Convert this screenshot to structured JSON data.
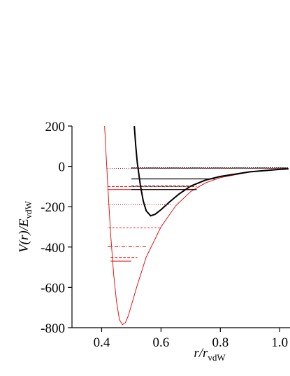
{
  "chart_data": {
    "type": "line",
    "xlabel": [
      "r/r",
      "vdW"
    ],
    "ylabel": [
      "V(r)/E",
      "vdW"
    ],
    "xlim": [
      0.3,
      1.03
    ],
    "ylim": [
      -800,
      200
    ],
    "xticks": [
      0.4,
      0.6,
      0.8,
      {
        "value": 1,
        "label": "1.0"
      }
    ],
    "yticks": [
      200,
      0,
      -200,
      -400,
      -600,
      -800
    ],
    "series": [
      {
        "color": "#e00000",
        "width": 0.9,
        "dash": "none",
        "x": [
          0.41,
          0.415,
          0.42,
          0.43,
          0.44,
          0.45,
          0.46,
          0.47,
          0.48,
          0.49,
          0.5,
          0.52,
          0.55,
          0.6,
          0.65,
          0.7,
          0.75,
          0.8,
          0.9,
          1.0,
          1.03
        ],
        "values": [
          200,
          60,
          -80,
          -330,
          -530,
          -670,
          -760,
          -785,
          -775,
          -740,
          -690,
          -590,
          -450,
          -300,
          -195,
          -125,
          -82,
          -56,
          -28,
          -15,
          -12
        ]
      },
      {
        "color": "#000000",
        "width": 2,
        "dash": "none",
        "x": [
          0.51,
          0.515,
          0.52,
          0.53,
          0.54,
          0.55,
          0.565,
          0.58,
          0.6,
          0.63,
          0.66,
          0.7,
          0.75,
          0.8,
          0.9,
          1.0,
          1.03
        ],
        "values": [
          200,
          100,
          20,
          -90,
          -170,
          -220,
          -245,
          -238,
          -215,
          -175,
          -138,
          -98,
          -68,
          -50,
          -27,
          -15,
          -12
        ]
      },
      {
        "color": "#e00000",
        "width": 1,
        "dash": "1,2",
        "x": [
          0.42,
          1.03
        ],
        "values": [
          -10,
          -10
        ]
      },
      {
        "color": "#000000",
        "width": 1.5,
        "dash": "2,1",
        "x": [
          0.5,
          1.03
        ],
        "values": [
          -8,
          -8
        ]
      },
      {
        "color": "#000000",
        "width": 1.2,
        "dash": "none",
        "x": [
          0.5,
          0.78
        ],
        "values": [
          -62,
          -62
        ]
      },
      {
        "color": "#e00000",
        "width": 1,
        "dash": "4,2",
        "x": [
          0.42,
          0.72
        ],
        "values": [
          -100,
          -100
        ]
      },
      {
        "color": "#000000",
        "width": 1.2,
        "dash": "4,2",
        "x": [
          0.5,
          0.7
        ],
        "values": [
          -98,
          -98
        ]
      },
      {
        "color": "#e00000",
        "width": 1,
        "dash": "none",
        "x": [
          0.42,
          0.72
        ],
        "values": [
          -115,
          -115
        ]
      },
      {
        "color": "#000000",
        "width": 1.2,
        "dash": "none",
        "x": [
          0.5,
          0.72
        ],
        "values": [
          -115,
          -115
        ]
      },
      {
        "color": "#e00000",
        "width": 1,
        "dash": "1,2",
        "x": [
          0.42,
          0.64
        ],
        "values": [
          -190,
          -190
        ]
      },
      {
        "color": "#e00000",
        "width": 1,
        "dash": "1,1",
        "x": [
          0.42,
          0.6
        ],
        "values": [
          -305,
          -305
        ]
      },
      {
        "color": "#e00000",
        "width": 1,
        "dash": "5,2,1,2",
        "x": [
          0.42,
          0.55
        ],
        "values": [
          -398,
          -398
        ]
      },
      {
        "color": "#e00000",
        "width": 1,
        "dash": "4,2",
        "x": [
          0.43,
          0.52
        ],
        "values": [
          -452,
          -452
        ]
      },
      {
        "color": "#e00000",
        "width": 1,
        "dash": "none",
        "x": [
          0.43,
          0.5
        ],
        "values": [
          -470,
          -470
        ]
      }
    ]
  }
}
